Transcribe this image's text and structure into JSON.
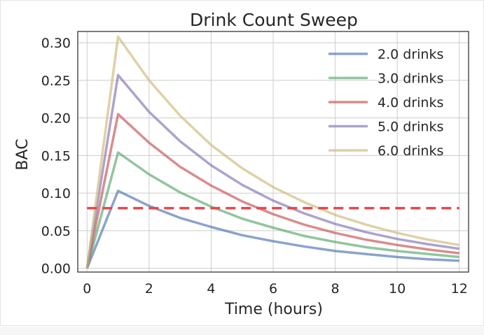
{
  "chart_data": {
    "type": "line",
    "title": "Drink Count Sweep",
    "xlabel": "Time (hours)",
    "ylabel": "BAC",
    "xlim": [
      -0.3,
      12.3
    ],
    "ylim": [
      -0.005,
      0.315
    ],
    "xticks": [
      0,
      2,
      4,
      6,
      8,
      10,
      12
    ],
    "xtick_labels": [
      "0",
      "2",
      "4",
      "6",
      "8",
      "10",
      "12"
    ],
    "yticks": [
      0.0,
      0.05,
      0.1,
      0.15,
      0.2,
      0.25,
      0.3
    ],
    "ytick_labels": [
      "0.00",
      "0.05",
      "0.10",
      "0.15",
      "0.20",
      "0.25",
      "0.30"
    ],
    "grid": true,
    "legend_position": "top-right",
    "x": [
      0,
      1,
      2,
      3,
      4,
      5,
      6,
      7,
      8,
      9,
      10,
      11,
      12
    ],
    "series": [
      {
        "name": "2.0 drinks",
        "color": "#4c72b0",
        "values": [
          0.0,
          0.103,
          0.083,
          0.067,
          0.055,
          0.044,
          0.036,
          0.029,
          0.023,
          0.019,
          0.015,
          0.012,
          0.01
        ]
      },
      {
        "name": "3.0 drinks",
        "color": "#55a868",
        "values": [
          0.0,
          0.154,
          0.125,
          0.101,
          0.082,
          0.066,
          0.054,
          0.043,
          0.035,
          0.028,
          0.023,
          0.019,
          0.015
        ]
      },
      {
        "name": "4.0 drinks",
        "color": "#c44e52",
        "values": [
          0.0,
          0.205,
          0.167,
          0.135,
          0.11,
          0.089,
          0.072,
          0.058,
          0.047,
          0.038,
          0.031,
          0.025,
          0.02
        ]
      },
      {
        "name": "5.0 drinks",
        "color": "#8172b2",
        "values": [
          0.0,
          0.257,
          0.208,
          0.169,
          0.137,
          0.111,
          0.09,
          0.073,
          0.059,
          0.048,
          0.039,
          0.032,
          0.026
        ]
      },
      {
        "name": "6.0 drinks",
        "color": "#ccb974",
        "values": [
          0.0,
          0.308,
          0.25,
          0.203,
          0.164,
          0.133,
          0.108,
          0.088,
          0.071,
          0.058,
          0.047,
          0.038,
          0.031
        ]
      }
    ],
    "reference_line": {
      "y": 0.08,
      "style": "dashed",
      "color": "#e8464a"
    }
  }
}
